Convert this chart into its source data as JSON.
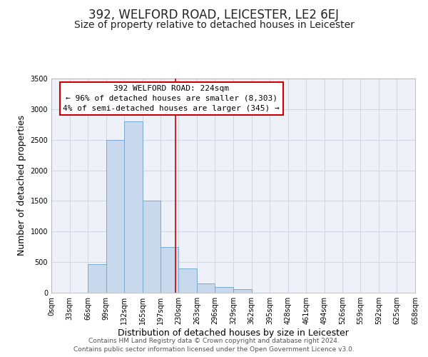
{
  "title": "392, WELFORD ROAD, LEICESTER, LE2 6EJ",
  "subtitle": "Size of property relative to detached houses in Leicester",
  "xlabel": "Distribution of detached houses by size in Leicester",
  "ylabel": "Number of detached properties",
  "bin_edges": [
    0,
    33,
    66,
    99,
    132,
    165,
    197,
    230,
    263,
    296,
    329,
    362,
    395,
    428,
    461,
    494,
    526,
    559,
    592,
    625,
    658
  ],
  "bar_heights": [
    0,
    0,
    470,
    2500,
    2800,
    1500,
    750,
    400,
    150,
    90,
    60,
    0,
    0,
    0,
    0,
    0,
    0,
    0,
    0,
    0
  ],
  "bar_color": "#c8d9ee",
  "bar_edge_color": "#7aaacf",
  "vline_x": 224,
  "vline_color": "#cc0000",
  "annotation_title": "392 WELFORD ROAD: 224sqm",
  "annotation_line1": "← 96% of detached houses are smaller (8,303)",
  "annotation_line2": "4% of semi-detached houses are larger (345) →",
  "annotation_box_color": "#ffffff",
  "annotation_box_edge_color": "#cc0000",
  "ylim": [
    0,
    3500
  ],
  "xlim": [
    0,
    658
  ],
  "yticks": [
    0,
    500,
    1000,
    1500,
    2000,
    2500,
    3000,
    3500
  ],
  "footer1": "Contains HM Land Registry data © Crown copyright and database right 2024.",
  "footer2": "Contains public sector information licensed under the Open Government Licence v3.0.",
  "title_fontsize": 12,
  "subtitle_fontsize": 10,
  "axis_label_fontsize": 9,
  "tick_fontsize": 7,
  "footer_fontsize": 6.5,
  "grid_color": "#d0d8e8",
  "bg_color": "#eef2f8"
}
